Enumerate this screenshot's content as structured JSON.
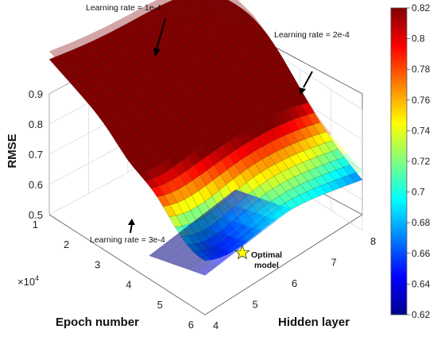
{
  "chart_data": {
    "type": "surface",
    "x_axis": {
      "label": "Epoch number",
      "ticks": [
        "1",
        "2",
        "3",
        "4",
        "5",
        "6"
      ],
      "multiplier": "×10",
      "multiplier_exp": "4",
      "range": [
        1,
        6
      ]
    },
    "y_axis": {
      "label": "Hidden layer",
      "ticks": [
        "4",
        "5",
        "6",
        "7",
        "8"
      ],
      "range": [
        4,
        8
      ]
    },
    "z_axis": {
      "label": "RMSE",
      "ticks": [
        "0.5",
        "0.6",
        "0.7",
        "0.8",
        "0.9"
      ],
      "range": [
        0.5,
        0.9
      ]
    },
    "colorbar": {
      "ticks": [
        "0.62",
        "0.64",
        "0.66",
        "0.68",
        "0.7",
        "0.72",
        "0.74",
        "0.76",
        "0.78",
        "0.8",
        "0.82"
      ],
      "range": [
        0.62,
        0.82
      ],
      "colormap": "jet"
    },
    "surfaces": [
      {
        "learning_rate": "1e-4"
      },
      {
        "learning_rate": "2e-4"
      },
      {
        "learning_rate": "3e-4"
      }
    ],
    "optimal_point": {
      "epoch": 4.8,
      "hidden_layer": 6.5,
      "rmse": 0.55
    },
    "grid": true
  },
  "annotations": {
    "lr1": "Learning rate = 1e-4",
    "lr2": "Learning rate = 2e-4",
    "lr3": "Learning rate = 3e-4",
    "optimal_line1": "Optimal",
    "optimal_line2": "model"
  },
  "colors": {
    "star": "#ffff00",
    "axis": "#444444"
  }
}
